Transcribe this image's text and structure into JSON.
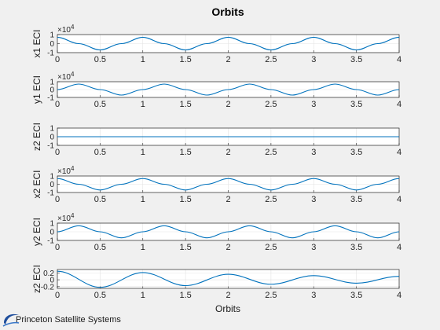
{
  "figure": {
    "title": "Orbits",
    "xlabel": "Orbits",
    "brand": "Princeton Satellite Systems",
    "line_color": "#0072bd"
  },
  "chart_data": [
    {
      "type": "line",
      "ylabel": "x1 ECI",
      "exponent": "4",
      "xlim": [
        0,
        4
      ],
      "ylim": [
        -1,
        1
      ],
      "xticks": [
        0,
        0.5,
        1,
        1.5,
        2,
        2.5,
        3,
        3.5,
        4
      ],
      "yticks": [
        -1,
        0,
        1
      ],
      "x": [
        0,
        0.25,
        0.5,
        0.75,
        1,
        1.25,
        1.5,
        1.75,
        2,
        2.25,
        2.5,
        2.75,
        3,
        3.25,
        3.5,
        3.75,
        4
      ],
      "y": [
        0.7,
        0,
        -0.7,
        0,
        0.7,
        0,
        -0.7,
        0,
        0.7,
        0,
        -0.7,
        0,
        0.7,
        0,
        -0.7,
        0,
        0.7
      ]
    },
    {
      "type": "line",
      "ylabel": "y1 ECI",
      "exponent": "4",
      "xlim": [
        0,
        4
      ],
      "ylim": [
        -1,
        1
      ],
      "xticks": [
        0,
        0.5,
        1,
        1.5,
        2,
        2.5,
        3,
        3.5,
        4
      ],
      "yticks": [
        -1,
        0,
        1
      ],
      "x": [
        0,
        0.25,
        0.5,
        0.75,
        1,
        1.25,
        1.5,
        1.75,
        2,
        2.25,
        2.5,
        2.75,
        3,
        3.25,
        3.5,
        3.75,
        4
      ],
      "y": [
        0,
        0.7,
        0,
        -0.7,
        0,
        0.7,
        0,
        -0.7,
        0,
        0.7,
        0,
        -0.7,
        0,
        0.7,
        0,
        -0.7,
        0
      ]
    },
    {
      "type": "line",
      "ylabel": "z2 ECI",
      "exponent": "",
      "xlim": [
        0,
        4
      ],
      "ylim": [
        -1,
        1
      ],
      "xticks": [
        0,
        0.5,
        1,
        1.5,
        2,
        2.5,
        3,
        3.5,
        4
      ],
      "yticks": [
        -1,
        0,
        1
      ],
      "x": [
        0,
        4
      ],
      "y": [
        0,
        0
      ]
    },
    {
      "type": "line",
      "ylabel": "x2 ECI",
      "exponent": "4",
      "xlim": [
        0,
        4
      ],
      "ylim": [
        -1,
        1
      ],
      "xticks": [
        0,
        0.5,
        1,
        1.5,
        2,
        2.5,
        3,
        3.5,
        4
      ],
      "yticks": [
        -1,
        0,
        1
      ],
      "x": [
        0,
        0.25,
        0.5,
        0.75,
        1,
        1.25,
        1.5,
        1.75,
        2,
        2.25,
        2.5,
        2.75,
        3,
        3.25,
        3.5,
        3.75,
        4
      ],
      "y": [
        0.7,
        0,
        -0.7,
        0,
        0.7,
        0,
        -0.7,
        0,
        0.7,
        0,
        -0.7,
        0,
        0.7,
        0,
        -0.7,
        0,
        0.7
      ]
    },
    {
      "type": "line",
      "ylabel": "y2 ECI",
      "exponent": "4",
      "xlim": [
        0,
        4
      ],
      "ylim": [
        -1,
        1
      ],
      "xticks": [
        0,
        0.5,
        1,
        1.5,
        2,
        2.5,
        3,
        3.5,
        4
      ],
      "yticks": [
        -1,
        0,
        1
      ],
      "x": [
        0,
        0.25,
        0.5,
        0.75,
        1,
        1.25,
        1.5,
        1.75,
        2,
        2.25,
        2.5,
        2.75,
        3,
        3.25,
        3.5,
        3.75,
        4
      ],
      "y": [
        0,
        0.7,
        0,
        -0.7,
        0,
        0.7,
        0,
        -0.7,
        0,
        0.7,
        0,
        -0.7,
        0,
        0.7,
        0,
        -0.7,
        0
      ]
    },
    {
      "type": "line",
      "ylabel": "z2 ECI",
      "exponent": "",
      "xlim": [
        0,
        4
      ],
      "ylim": [
        -0.25,
        0.3
      ],
      "xticks": [
        0,
        0.5,
        1,
        1.5,
        2,
        2.5,
        3,
        3.5,
        4
      ],
      "yticks": [
        -0.2,
        0,
        0.2
      ],
      "x": [
        0,
        0.5,
        1,
        1.5,
        2,
        2.5,
        3,
        3.5,
        4
      ],
      "y": [
        0.25,
        -0.22,
        0.21,
        -0.17,
        0.16,
        -0.13,
        0.12,
        -0.1,
        0.1
      ]
    }
  ]
}
